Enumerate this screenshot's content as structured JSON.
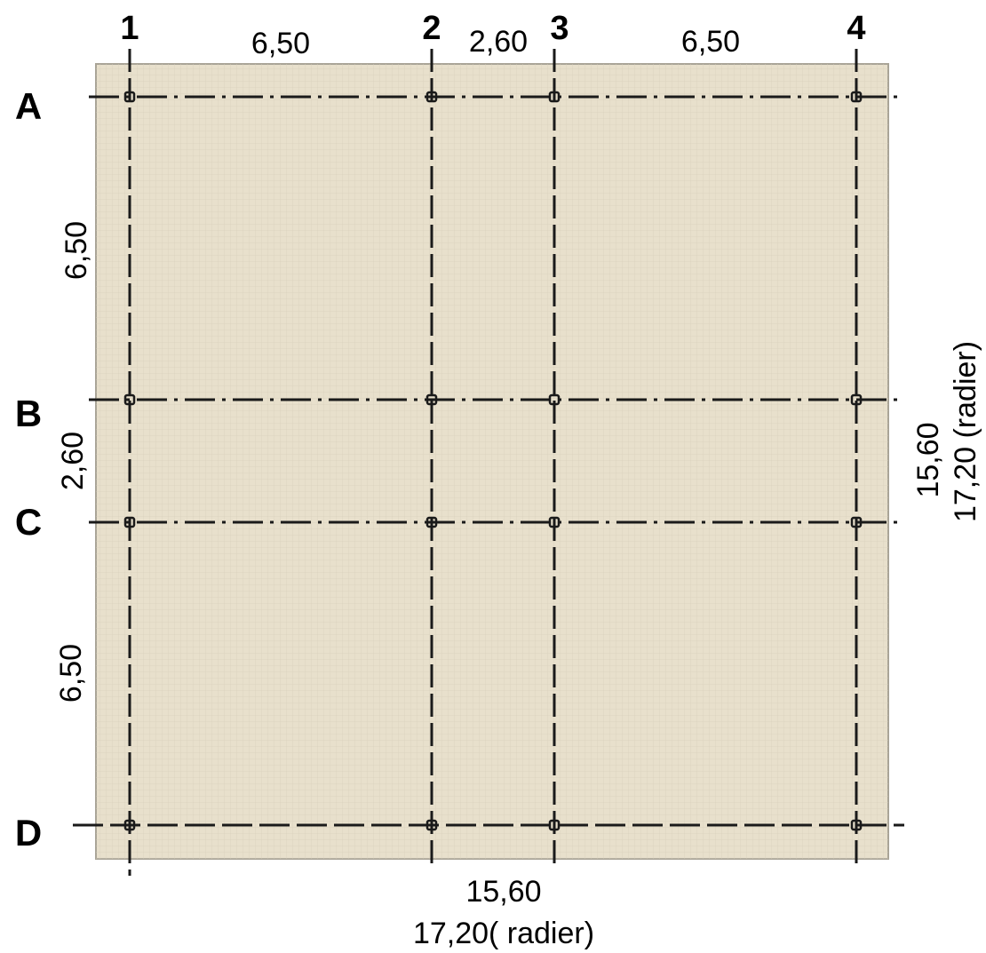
{
  "colors": {
    "slab_fill": "#e8e0cc",
    "slab_border": "#a9a497",
    "slab_texture": "#d8cfba",
    "line": "#1a1a1a",
    "text": "#000000"
  },
  "axes": {
    "columns": [
      {
        "id": "1",
        "label": "1"
      },
      {
        "id": "2",
        "label": "2"
      },
      {
        "id": "3",
        "label": "3"
      },
      {
        "id": "4",
        "label": "4"
      }
    ],
    "rows": [
      {
        "id": "A",
        "label": "A"
      },
      {
        "id": "B",
        "label": "B"
      },
      {
        "id": "C",
        "label": "C"
      },
      {
        "id": "D",
        "label": "D"
      }
    ]
  },
  "dimensions": {
    "top": [
      "6,50",
      "2,60",
      "6,50"
    ],
    "left": [
      "6,50",
      "2,60",
      "6,50"
    ],
    "bottom_total": "15,60",
    "bottom_radier": "17,20( radier)",
    "right_total": "15,60",
    "right_radier": "17,20 (radier)"
  }
}
